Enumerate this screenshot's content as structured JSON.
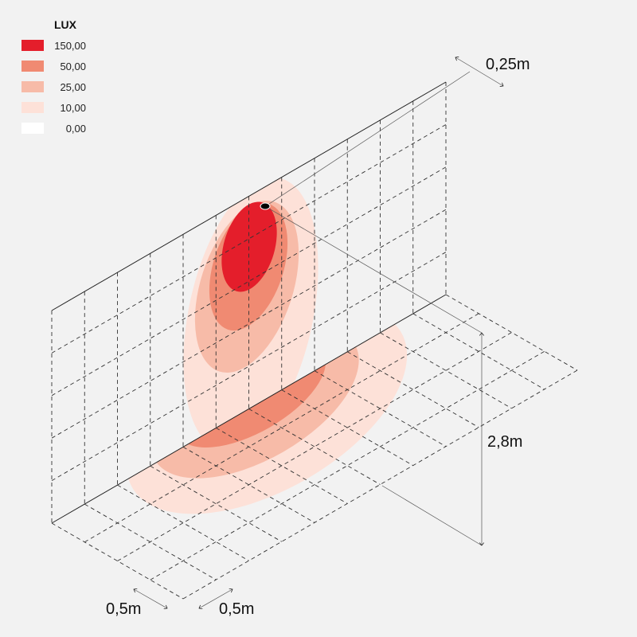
{
  "legend": {
    "title": "LUX",
    "items": [
      {
        "label": "150,00",
        "color": "#e41e2b"
      },
      {
        "label": "50,00",
        "color": "#f08a72"
      },
      {
        "label": "25,00",
        "color": "#f7bba8"
      },
      {
        "label": "10,00",
        "color": "#fde1d8"
      },
      {
        "label": "0,00",
        "color": "#ffffff"
      }
    ]
  },
  "dimensions": {
    "offset": "0,25m",
    "height": "2,8m",
    "grid_x": "0,5m",
    "grid_y": "0,5m"
  }
}
